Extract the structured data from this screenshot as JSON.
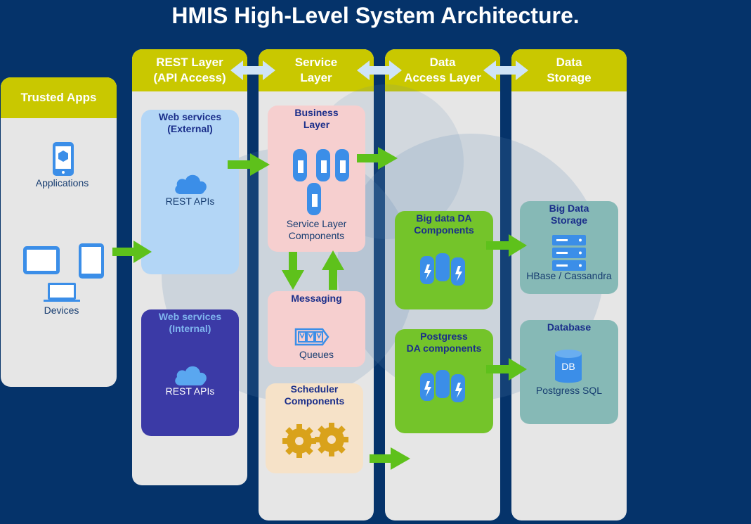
{
  "title": "HMIS High-Level System Architecture.",
  "colors": {
    "background": "#05336a",
    "header": "#c9c800",
    "column": "#e6e6e6",
    "arrow": "#5ec11b",
    "icon": "#3b8ee8"
  },
  "columns": {
    "trusted_apps": "Trusted Apps",
    "rest_layer": "REST Layer\n(API Access)",
    "service_layer": "Service\nLayer",
    "data_access": "Data\nAccess Layer",
    "data_storage": "Data\nStorage"
  },
  "trusted_apps": {
    "applications_label": "Applications",
    "devices_label": "Devices"
  },
  "rest": {
    "external_title": "Web services\n(External)",
    "external_label": "REST APIs",
    "internal_title": "Web services\n(Internal)",
    "internal_label": "REST APIs"
  },
  "service": {
    "business_title": "Business\nLayer",
    "business_label": "Service Layer\nComponents",
    "messaging_title": "Messaging",
    "messaging_label": "Queues",
    "scheduler_title": "Scheduler\nComponents"
  },
  "data_access": {
    "bigdata_title": "Big data DA\nComponents",
    "postgres_title": "Postgress\nDA components"
  },
  "storage": {
    "bigdata_title": "Big Data\nStorage",
    "bigdata_label": "HBase / Cassandra",
    "db_title": "Database",
    "db_label": "Postgress SQL",
    "db_icon_text": "DB"
  },
  "icons": {
    "applications": "smartphone-app-icon",
    "devices": "tablet-phone-laptop-icon",
    "cloud": "cloud-icon",
    "servers": "server-cylinder-icon",
    "queues": "queue-icon",
    "databases": "database-lightning-icon",
    "gears": "gear-icon",
    "rack": "server-rack-icon",
    "db": "db-cylinder-icon"
  }
}
